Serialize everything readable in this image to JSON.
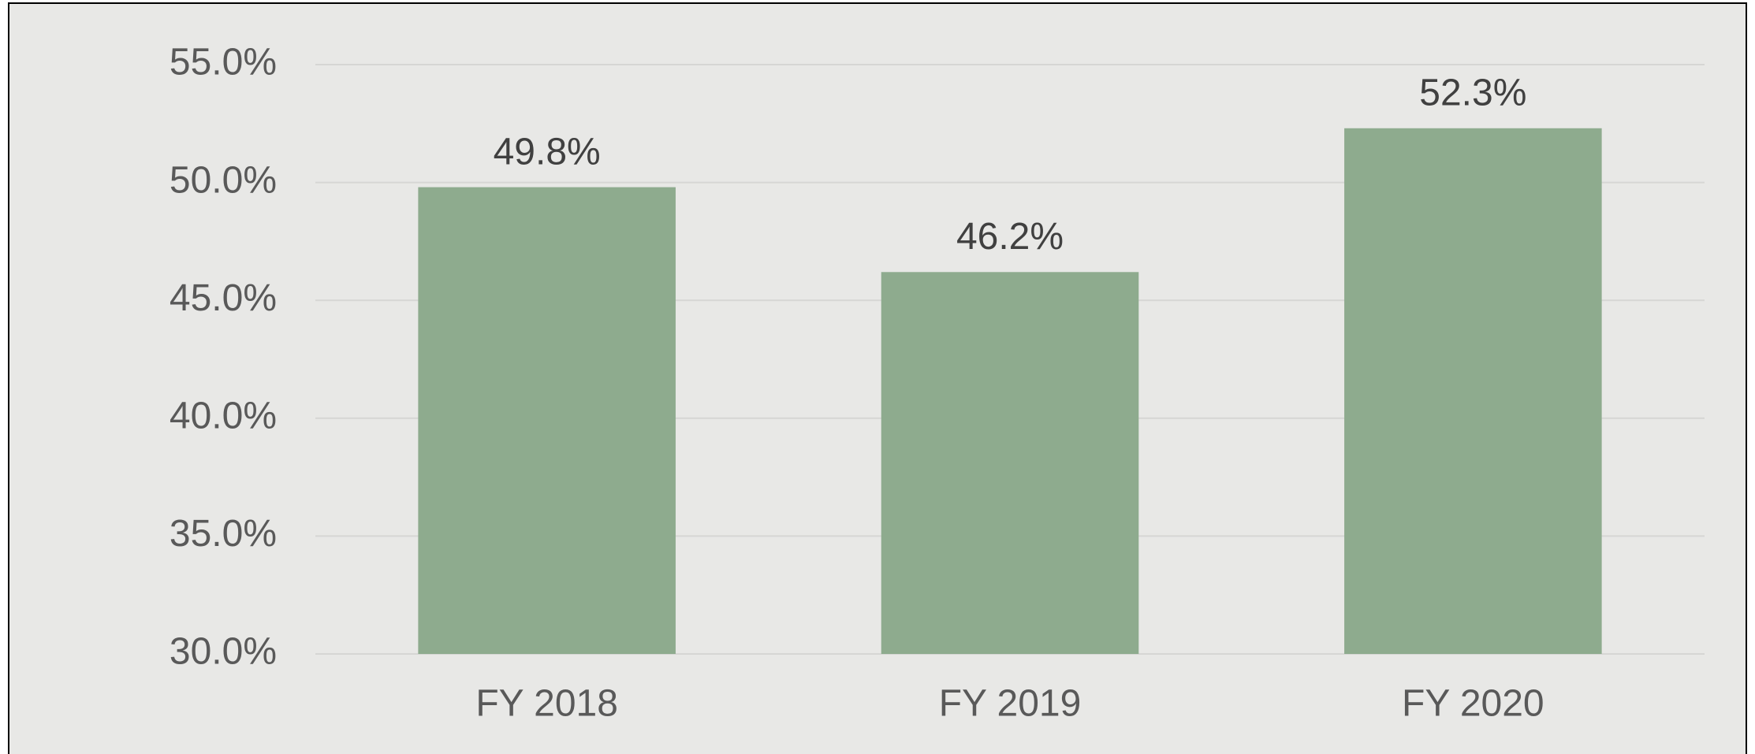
{
  "chart_data": {
    "type": "bar",
    "categories": [
      "FY 2018",
      "FY 2019",
      "FY 2020"
    ],
    "values": [
      49.8,
      46.2,
      52.3
    ],
    "value_labels": [
      "49.8%",
      "46.2%",
      "52.3%"
    ],
    "color": "#8eab8e",
    "ylim": [
      30,
      55
    ],
    "yticks": [
      {
        "value": 30,
        "label": "30.0%"
      },
      {
        "value": 35,
        "label": "35.0%"
      },
      {
        "value": 40,
        "label": "40.0%"
      },
      {
        "value": 45,
        "label": "45.0%"
      },
      {
        "value": 50,
        "label": "50.0%"
      },
      {
        "value": 55,
        "label": "55.0%"
      }
    ],
    "grid": true
  }
}
